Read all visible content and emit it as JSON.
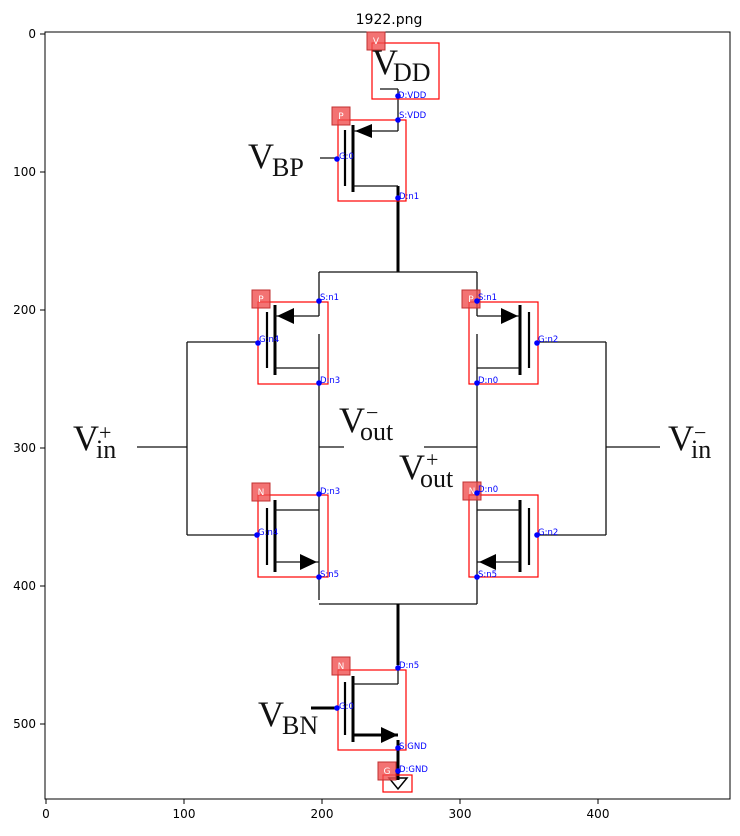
{
  "figure": {
    "title": "1922.png",
    "x_ticks": [
      "0",
      "100",
      "200",
      "300",
      "400"
    ],
    "y_ticks": [
      "0",
      "100",
      "200",
      "300",
      "400",
      "500"
    ]
  },
  "symbols": {
    "vdd": {
      "main": "V",
      "sub": "DD"
    },
    "vbp": {
      "main": "V",
      "sub": "BP"
    },
    "vbn": {
      "main": "V",
      "sub": "BN"
    },
    "vin_plus": {
      "main": "V",
      "sub": "in",
      "sup": "+"
    },
    "vin_minus": {
      "main": "V",
      "sub": "in",
      "sup": "−"
    },
    "vout_minus": {
      "main": "V",
      "sub": "out",
      "sup": "−"
    },
    "vout_plus": {
      "main": "V",
      "sub": "out",
      "sup": "+"
    }
  },
  "components": [
    {
      "id": "vdd",
      "badge": "V",
      "pins": [
        "D:VDD"
      ]
    },
    {
      "id": "m_top",
      "badge": "P",
      "pins": [
        "S:VDD",
        "G:0",
        "D:n1"
      ]
    },
    {
      "id": "m_lp",
      "badge": "P",
      "pins": [
        "S:n1",
        "G:n4",
        "D:n3"
      ]
    },
    {
      "id": "m_rp",
      "badge": "P",
      "pins": [
        "S:n1",
        "G:n2",
        "D:n0"
      ]
    },
    {
      "id": "m_ln",
      "badge": "N",
      "pins": [
        "D:n3",
        "G:n4",
        "S:n5"
      ]
    },
    {
      "id": "m_rn",
      "badge": "N",
      "pins": [
        "D:n0",
        "G:n2",
        "S:n5"
      ]
    },
    {
      "id": "m_bot",
      "badge": "N",
      "pins": [
        "D:n5",
        "G:0",
        "S:GND"
      ]
    },
    {
      "id": "gnd",
      "badge": "G",
      "pins": [
        "D:GND"
      ]
    }
  ]
}
